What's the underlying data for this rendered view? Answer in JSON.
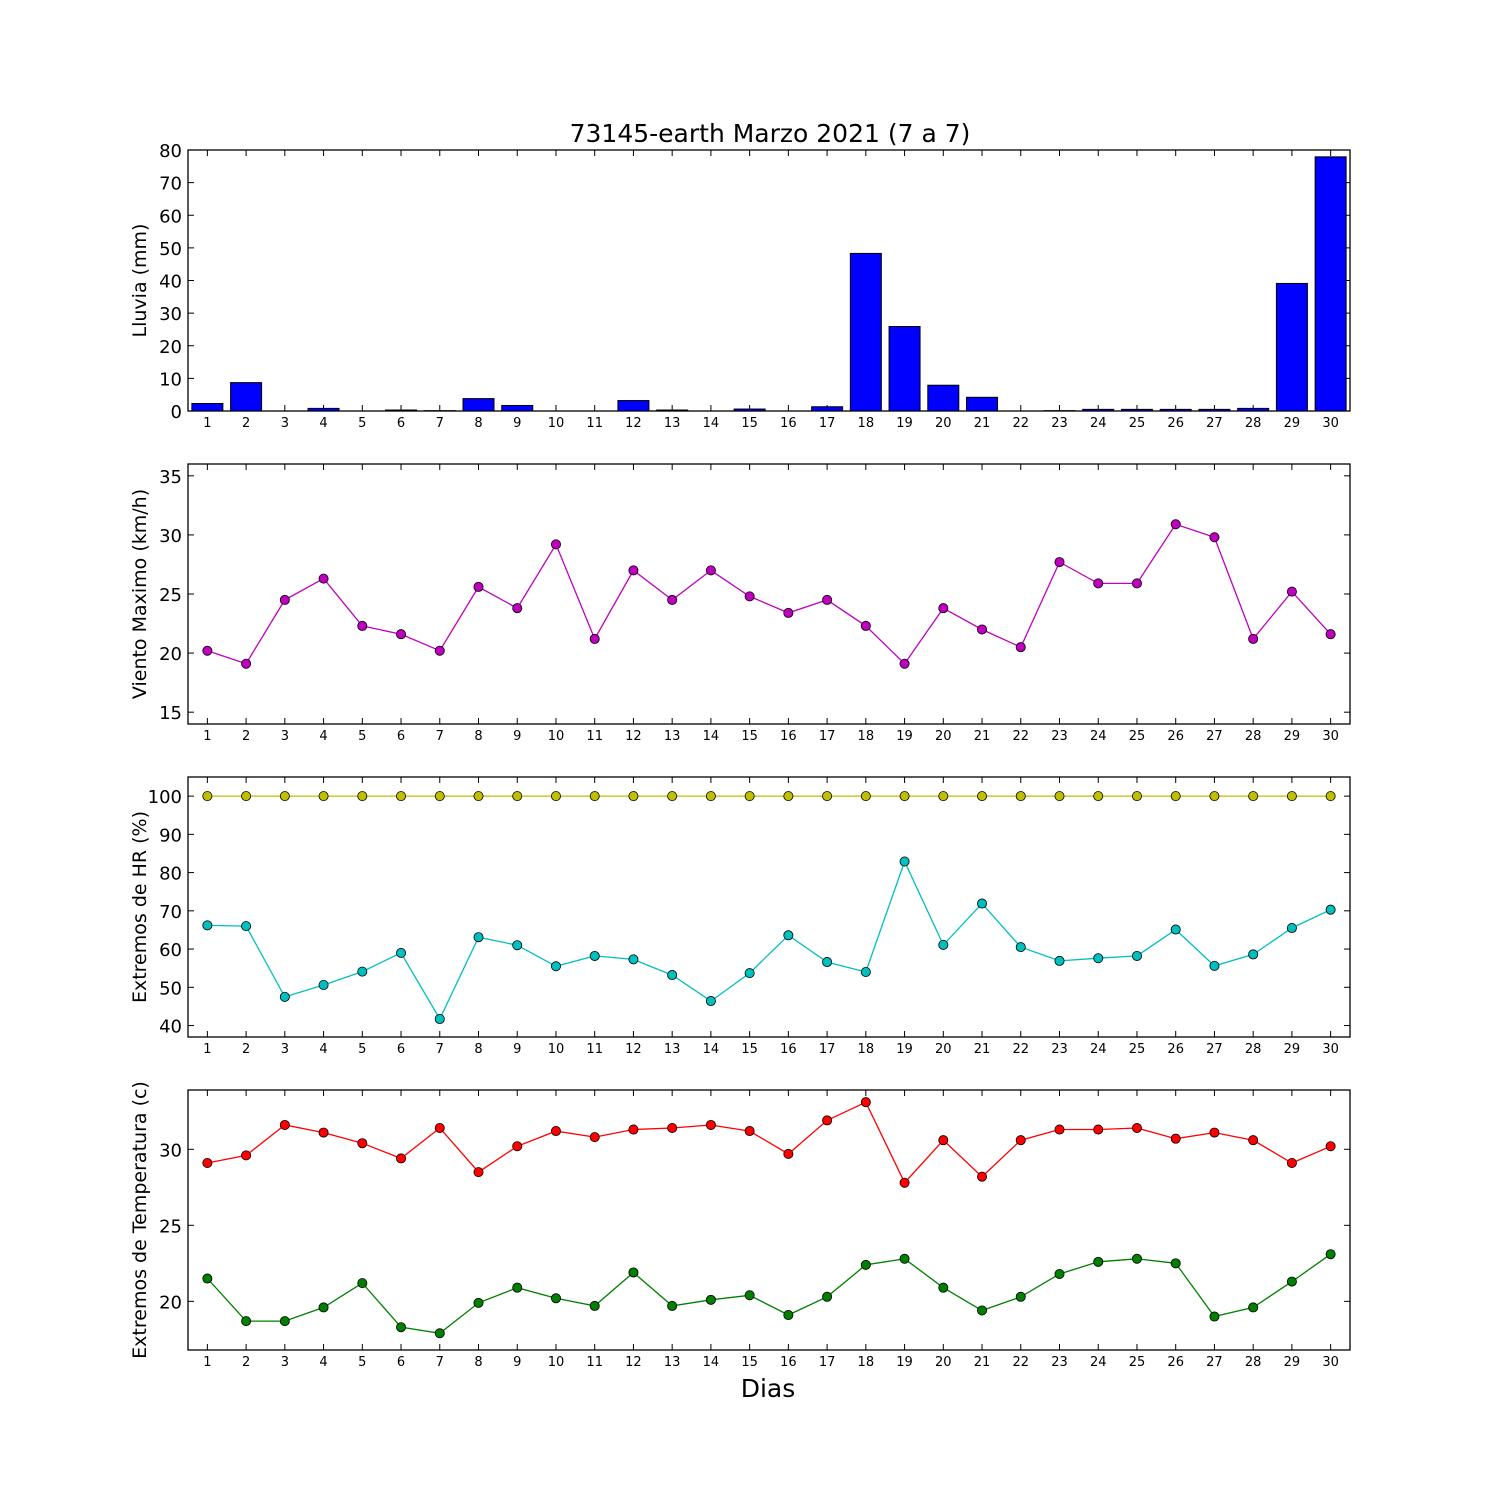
{
  "figure": {
    "title": "73145-earth Marzo 2021  (7 a 7)",
    "xlabel": "Dias"
  },
  "chart_data": [
    {
      "type": "bar",
      "ylabel": "Lluvia (mm)",
      "ylim": [
        0,
        80
      ],
      "yticks": [
        0,
        10,
        20,
        30,
        40,
        50,
        60,
        70,
        80
      ],
      "categories": [
        "1",
        "2",
        "3",
        "4",
        "5",
        "6",
        "7",
        "8",
        "9",
        "10",
        "11",
        "12",
        "13",
        "14",
        "15",
        "16",
        "17",
        "18",
        "19",
        "20",
        "21",
        "22",
        "23",
        "24",
        "25",
        "26",
        "27",
        "28",
        "29",
        "30"
      ],
      "series": [
        {
          "color": "#0000ff",
          "values": [
            2.3,
            8.7,
            0,
            0.8,
            0,
            0.3,
            0.1,
            3.8,
            1.7,
            0,
            0,
            3.2,
            0.3,
            0,
            0.6,
            0,
            1.3,
            48.3,
            25.9,
            7.9,
            4.2,
            0,
            0.1,
            0.5,
            0.5,
            0.5,
            0.5,
            0.8,
            39.1,
            77.9
          ]
        }
      ]
    },
    {
      "type": "line",
      "ylabel": "Viento Maximo (km/h)",
      "ylim": [
        14,
        36
      ],
      "yticks": [
        15,
        20,
        25,
        30,
        35
      ],
      "categories": [
        "1",
        "2",
        "3",
        "4",
        "5",
        "6",
        "7",
        "8",
        "9",
        "10",
        "11",
        "12",
        "13",
        "14",
        "15",
        "16",
        "17",
        "18",
        "19",
        "20",
        "21",
        "22",
        "23",
        "24",
        "25",
        "26",
        "27",
        "28",
        "29",
        "30"
      ],
      "series": [
        {
          "color": "#bf00bf",
          "values": [
            20.2,
            19.1,
            24.5,
            26.3,
            22.3,
            21.6,
            20.2,
            25.6,
            23.8,
            29.2,
            21.2,
            27.0,
            24.5,
            27.0,
            24.8,
            23.4,
            24.5,
            22.3,
            19.1,
            23.8,
            22.0,
            20.5,
            27.7,
            25.9,
            25.9,
            30.9,
            29.8,
            21.2,
            25.2,
            21.6
          ]
        }
      ]
    },
    {
      "type": "line",
      "ylabel": "Extremos de HR (%)",
      "ylim": [
        37,
        105
      ],
      "yticks": [
        40,
        50,
        60,
        70,
        80,
        90,
        100
      ],
      "categories": [
        "1",
        "2",
        "3",
        "4",
        "5",
        "6",
        "7",
        "8",
        "9",
        "10",
        "11",
        "12",
        "13",
        "14",
        "15",
        "16",
        "17",
        "18",
        "19",
        "20",
        "21",
        "22",
        "23",
        "24",
        "25",
        "26",
        "27",
        "28",
        "29",
        "30"
      ],
      "series": [
        {
          "color": "#bfbf00",
          "values": [
            100,
            100,
            100,
            100,
            100,
            100,
            100,
            100,
            100,
            100,
            100,
            100,
            100,
            100,
            100,
            100,
            100,
            100,
            100,
            100,
            100,
            100,
            100,
            100,
            100,
            100,
            100,
            100,
            100,
            100
          ]
        },
        {
          "color": "#00bfbf",
          "values": [
            66.2,
            66.0,
            47.5,
            50.6,
            54.1,
            59.0,
            41.7,
            63.1,
            61.0,
            55.5,
            58.2,
            57.3,
            53.2,
            46.4,
            53.7,
            63.6,
            56.6,
            54.0,
            82.9,
            61.1,
            71.9,
            60.5,
            56.9,
            57.6,
            58.2,
            65.1,
            55.6,
            58.6,
            65.5,
            70.3
          ]
        }
      ]
    },
    {
      "type": "line",
      "ylabel": "Extremos de Temperatura (c)",
      "ylim": [
        16.8,
        33.9
      ],
      "yticks": [
        20,
        25,
        30
      ],
      "categories": [
        "1",
        "2",
        "3",
        "4",
        "5",
        "6",
        "7",
        "8",
        "9",
        "10",
        "11",
        "12",
        "13",
        "14",
        "15",
        "16",
        "17",
        "18",
        "19",
        "20",
        "21",
        "22",
        "23",
        "24",
        "25",
        "26",
        "27",
        "28",
        "29",
        "30"
      ],
      "series": [
        {
          "color": "#ff0000",
          "values": [
            29.1,
            29.6,
            31.6,
            31.1,
            30.4,
            29.4,
            31.4,
            28.5,
            30.2,
            31.2,
            30.8,
            31.3,
            31.4,
            31.6,
            31.2,
            29.7,
            31.9,
            33.1,
            27.8,
            30.6,
            28.2,
            30.6,
            31.3,
            31.3,
            31.4,
            30.7,
            31.1,
            30.6,
            29.1,
            30.2
          ]
        },
        {
          "color": "#007f00",
          "values": [
            21.5,
            18.7,
            18.7,
            19.6,
            21.2,
            18.3,
            17.9,
            19.9,
            20.9,
            20.2,
            19.7,
            21.9,
            19.7,
            20.1,
            20.4,
            19.1,
            20.3,
            22.4,
            22.8,
            20.9,
            19.4,
            20.3,
            21.8,
            22.6,
            22.8,
            22.5,
            19.0,
            19.6,
            21.3,
            23.1
          ]
        }
      ]
    }
  ]
}
